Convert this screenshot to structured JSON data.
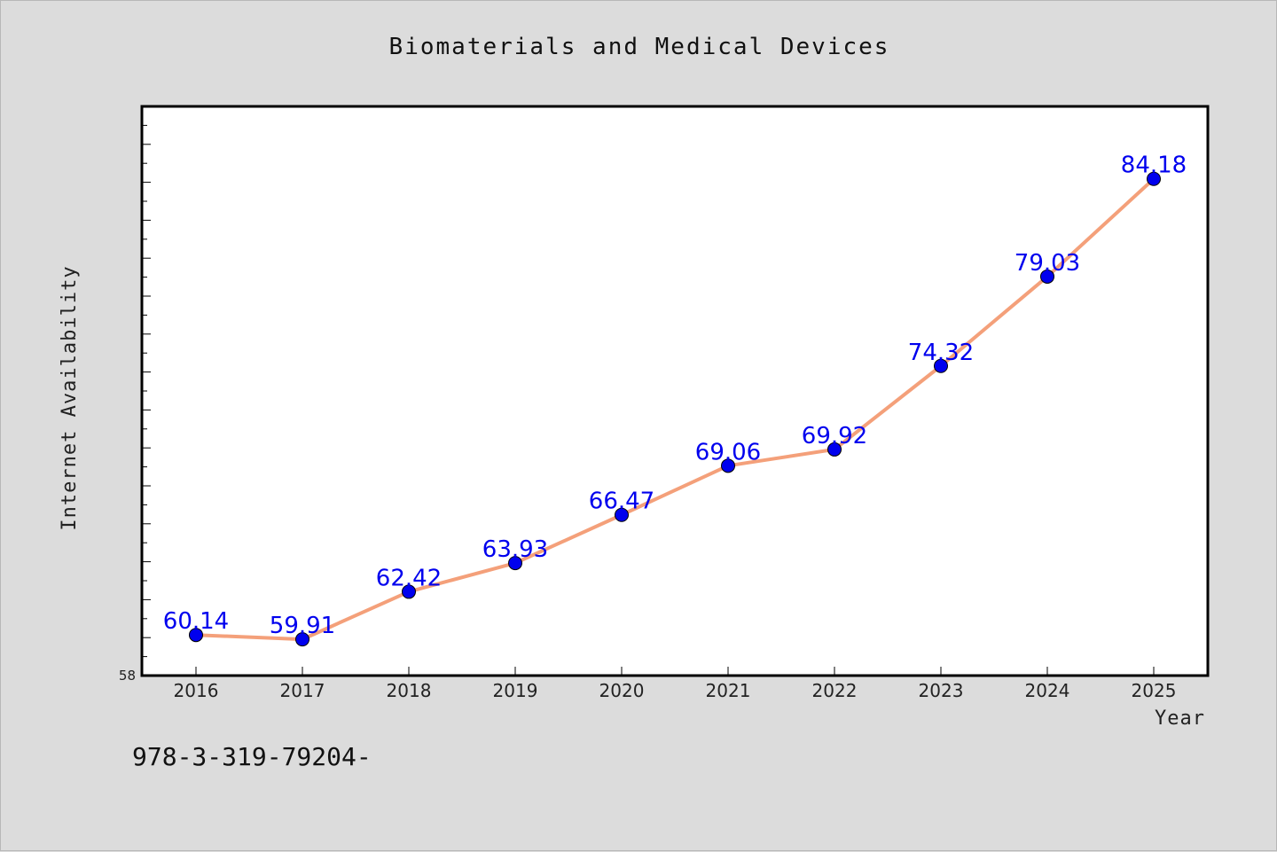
{
  "chart_data": {
    "type": "line",
    "title": "Biomaterials and Medical Devices",
    "xlabel": "Year",
    "ylabel": "Internet Availability",
    "x": [
      "2016",
      "2017",
      "2018",
      "2019",
      "2020",
      "2021",
      "2022",
      "2023",
      "2024",
      "2025"
    ],
    "series": [
      {
        "values": [
          60.14,
          59.91,
          62.42,
          63.93,
          66.47,
          69.06,
          69.92,
          74.32,
          79.03,
          84.18
        ],
        "line_color": "#f4a07a",
        "marker_color": "#0000ee"
      }
    ],
    "ylim": [
      58,
      88
    ],
    "y_min_label": "58",
    "grid": false,
    "legend": "none"
  },
  "footnote": "978-3-319-79204-"
}
